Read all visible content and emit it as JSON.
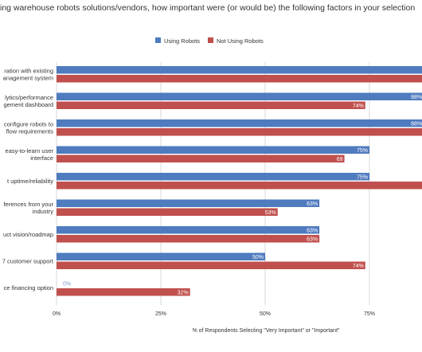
{
  "chart_data": {
    "type": "bar",
    "orientation": "horizontal",
    "title": "ing warehouse robots solutions/vendors, how important were (or would be) the following factors in your selection",
    "xlabel": "% of Respondents Selecting \"Very Important\" or \"Important\"",
    "xlim": [
      0,
      100
    ],
    "xticks": [
      "0%",
      "25%",
      "50%",
      "75%"
    ],
    "grid": "vertical",
    "legend_position": "top",
    "categories": [
      [
        "ration with existing",
        "anagement system"
      ],
      [
        "lytics/performance",
        "gement dashboard"
      ],
      [
        "configure robots to",
        "flow requirements"
      ],
      [
        "easy-to-learn user",
        "interface"
      ],
      [
        "t uptime/reliability"
      ],
      [
        "ferences from your",
        "industry"
      ],
      [
        "uct vision/roadmap"
      ],
      [
        "7 customer support"
      ],
      [
        "ce financing option"
      ]
    ],
    "series": [
      {
        "name": "Using Robots",
        "color": "#4f7bbf",
        "values": [
          100,
          88,
          88,
          75,
          75,
          63,
          63,
          50,
          0
        ],
        "labels": [
          "",
          "88%",
          "88%",
          "75%",
          "75%",
          "63%",
          "63%",
          "50%",
          "0%"
        ]
      },
      {
        "name": "Not Using Robots",
        "color": "#c0504d",
        "values": [
          100,
          74,
          100,
          69,
          100,
          53,
          63,
          74,
          32
        ],
        "labels": [
          "",
          "74%",
          "",
          "69",
          "",
          "53%",
          "63%",
          "74%",
          "32%"
        ]
      }
    ]
  }
}
